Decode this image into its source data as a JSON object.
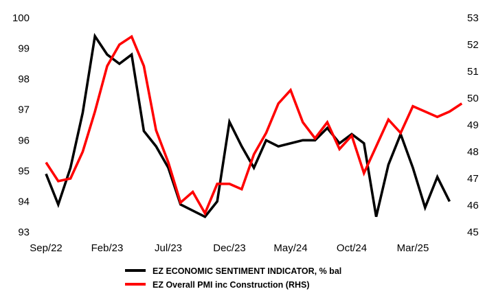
{
  "chart_data": {
    "type": "line",
    "title": "",
    "x_tick_labels": [
      "Sep/22",
      "Feb/23",
      "Jul/23",
      "Dec/23",
      "May/24",
      "Oct/24",
      "Mar/25"
    ],
    "x_tick_indices": [
      0,
      5,
      10,
      15,
      20,
      25,
      30
    ],
    "x_start": "2022-09",
    "left_axis": {
      "ylim": [
        93,
        100
      ],
      "ticks": [
        93,
        94,
        95,
        96,
        97,
        98,
        99,
        100
      ]
    },
    "right_axis": {
      "ylim": [
        45,
        53
      ],
      "ticks": [
        45,
        46,
        47,
        48,
        49,
        50,
        51,
        52,
        53
      ]
    },
    "grid": false,
    "legend_position": "bottom",
    "series": [
      {
        "name": "EZ ECONOMIC SENTIMENT INDICATOR, % bal",
        "axis": "left",
        "color": "#000000",
        "values": [
          94.9,
          93.9,
          95.1,
          96.9,
          99.4,
          98.8,
          98.5,
          98.8,
          96.3,
          95.8,
          95.1,
          93.9,
          93.7,
          93.5,
          94.0,
          96.6,
          95.8,
          95.1,
          96.0,
          95.8,
          95.9,
          96.0,
          96.0,
          96.4,
          95.9,
          96.2,
          95.9,
          93.5,
          95.2,
          96.2,
          95.1,
          93.8,
          94.8,
          94.0
        ]
      },
      {
        "name": "EZ Overall PMI inc Construction (RHS)",
        "axis": "right",
        "color": "#ff0000",
        "values": [
          47.6,
          46.9,
          47.0,
          48.0,
          49.5,
          51.2,
          52.0,
          52.3,
          51.2,
          48.8,
          47.6,
          46.1,
          46.5,
          45.7,
          46.8,
          46.8,
          46.6,
          47.9,
          48.7,
          49.8,
          50.3,
          49.1,
          48.5,
          49.1,
          48.1,
          48.6,
          47.2,
          48.2,
          49.2,
          48.7,
          49.7,
          49.5,
          49.3,
          49.5,
          49.8
        ]
      }
    ]
  }
}
